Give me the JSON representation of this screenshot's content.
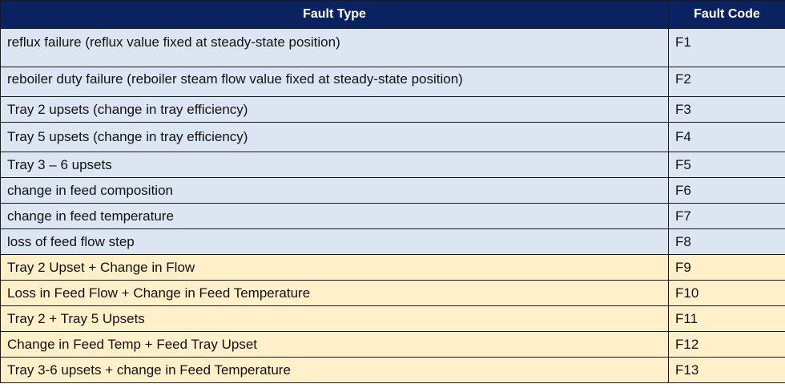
{
  "header": {
    "col_fault_type": "Fault Type",
    "col_fault_code": "Fault Code"
  },
  "rows": [
    {
      "type": "reflux failure (reflux value fixed at steady-state position)",
      "code": "F1",
      "group": "single"
    },
    {
      "type": "reboiler duty failure (reboiler steam flow value fixed at steady-state position)",
      "code": "F2",
      "group": "single"
    },
    {
      "type": "Tray 2 upsets (change in tray efficiency)",
      "code": "F3",
      "group": "single"
    },
    {
      "type": "Tray 5 upsets (change in tray efficiency)",
      "code": "F4",
      "group": "single"
    },
    {
      "type": "Tray 3 – 6 upsets",
      "code": "F5",
      "group": "single"
    },
    {
      "type": "change in feed composition",
      "code": "F6",
      "group": "single"
    },
    {
      "type": "change in feed temperature",
      "code": "F7",
      "group": "single"
    },
    {
      "type": "loss of feed flow step",
      "code": "F8",
      "group": "single"
    },
    {
      "type": "Tray 2 Upset + Change in Flow",
      "code": "F9",
      "group": "combined"
    },
    {
      "type": "Loss in Feed Flow + Change in Feed Temperature",
      "code": "F10",
      "group": "combined"
    },
    {
      "type": "Tray 2 + Tray 5 Upsets",
      "code": "F11",
      "group": "combined"
    },
    {
      "type": "Change in Feed Temp + Feed Tray Upset",
      "code": "F12",
      "group": "combined"
    },
    {
      "type": "Tray 3-6 upsets + change in Feed Temperature",
      "code": "F13",
      "group": "combined"
    }
  ],
  "colors": {
    "header_bg": "#0b2260",
    "single_fault_bg": "#dce6f2",
    "combined_fault_bg": "#fff0c9"
  }
}
